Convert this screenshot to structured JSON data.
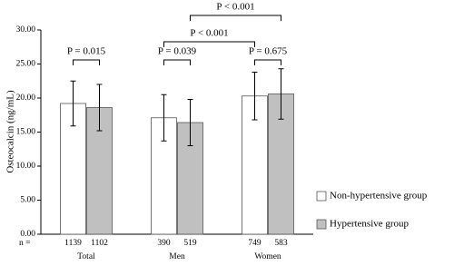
{
  "chart_data": {
    "type": "bar",
    "y_label": "Osteocalcin (ng/mL)",
    "categories": [
      "Total",
      "Men",
      "Women"
    ],
    "series": [
      {
        "name": "Non-hypertensive group",
        "color": "#ffffff",
        "values": [
          19.2,
          17.1,
          20.3
        ],
        "errors": [
          3.3,
          3.4,
          3.5
        ],
        "n": [
          1139,
          390,
          749
        ]
      },
      {
        "name": "Hypertensive group",
        "color": "#c0c0c0",
        "values": [
          18.6,
          16.4,
          20.6
        ],
        "errors": [
          3.4,
          3.4,
          3.7
        ],
        "n": [
          1102,
          519,
          583
        ]
      }
    ],
    "n_label": "n =",
    "ylim": [
      0,
      30
    ],
    "yticks": [
      {
        "value": 0,
        "label": "0.00"
      },
      {
        "value": 5,
        "label": "5.00"
      },
      {
        "value": 10,
        "label": "10.00"
      },
      {
        "value": 15,
        "label": "15.00"
      },
      {
        "value": 20,
        "label": "20.00"
      },
      {
        "value": 25,
        "label": "25.00"
      },
      {
        "value": 30,
        "label": "30.00"
      }
    ],
    "annotations": [
      "P = 0.015",
      "P = 0.039",
      "P = 0.675",
      "P < 0.001",
      "P < 0.001"
    ],
    "grid": false
  }
}
